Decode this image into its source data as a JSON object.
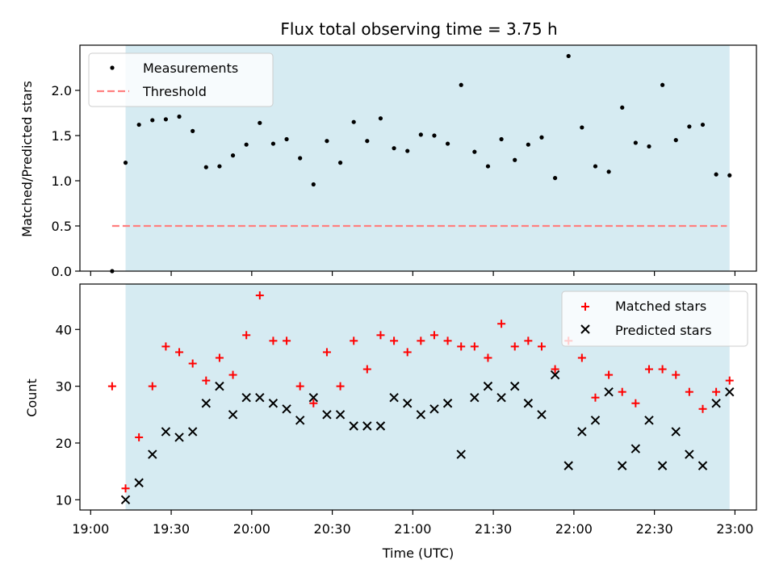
{
  "title": "Flux total observing time = 3.75 h",
  "xlabel": "Time (UTC)",
  "x_ticks": [
    "19:00",
    "19:30",
    "20:00",
    "20:30",
    "21:00",
    "21:30",
    "22:00",
    "22:30",
    "23:00"
  ],
  "colors": {
    "shade": "#add8e6",
    "measurement": "#000000",
    "threshold": "#ff7f7f",
    "matched": "#ff0000",
    "predicted": "#000000"
  },
  "chart_data": [
    {
      "type": "scatter",
      "ylabel": "Matched/Predicted stars",
      "xlim": [
        "18:56",
        "23:08"
      ],
      "ylim": [
        0,
        2.5
      ],
      "y_ticks": [
        "0.0",
        "0.5",
        "1.0",
        "1.5",
        "2.0"
      ],
      "shaded_region": [
        "19:13",
        "22:58"
      ],
      "threshold": {
        "value": 0.5,
        "x_range": [
          "19:08",
          "22:57"
        ]
      },
      "legend": {
        "position": "top-left",
        "entries": [
          "Measurements",
          "Threshold"
        ]
      },
      "series": [
        {
          "name": "Measurements",
          "x": [
            "19:08",
            "19:13",
            "19:18",
            "19:23",
            "19:28",
            "19:33",
            "19:38",
            "19:43",
            "19:48",
            "19:53",
            "19:58",
            "20:03",
            "20:08",
            "20:13",
            "20:18",
            "20:23",
            "20:28",
            "20:33",
            "20:38",
            "20:43",
            "20:48",
            "20:53",
            "20:58",
            "21:03",
            "21:08",
            "21:13",
            "21:18",
            "21:23",
            "21:28",
            "21:33",
            "21:38",
            "21:43",
            "21:48",
            "21:53",
            "21:58",
            "22:03",
            "22:08",
            "22:13",
            "22:18",
            "22:23",
            "22:28",
            "22:33",
            "22:38",
            "22:43",
            "22:48",
            "22:53",
            "22:58"
          ],
          "values": [
            0.0,
            1.2,
            1.62,
            1.67,
            1.68,
            1.71,
            1.55,
            1.15,
            1.16,
            1.28,
            1.4,
            1.64,
            1.41,
            1.46,
            1.25,
            0.96,
            1.44,
            1.2,
            1.65,
            1.44,
            1.69,
            1.36,
            1.33,
            1.51,
            1.5,
            1.41,
            2.06,
            1.32,
            1.16,
            1.46,
            1.23,
            1.4,
            1.48,
            1.03,
            2.38,
            1.59,
            1.16,
            1.1,
            1.81,
            1.42,
            1.38,
            2.06,
            1.45,
            1.6,
            1.62,
            1.07,
            1.06
          ]
        }
      ]
    },
    {
      "type": "scatter",
      "ylabel": "Count",
      "xlim": [
        "18:56",
        "23:08"
      ],
      "ylim": [
        8.2,
        48
      ],
      "y_ticks": [
        "10",
        "20",
        "30",
        "40"
      ],
      "shaded_region": [
        "19:13",
        "22:58"
      ],
      "legend": {
        "position": "top-right",
        "entries": [
          "Matched stars",
          "Predicted stars"
        ]
      },
      "series": [
        {
          "name": "Matched stars",
          "marker": "+",
          "x": [
            "19:08",
            "19:13",
            "19:18",
            "19:23",
            "19:28",
            "19:33",
            "19:38",
            "19:43",
            "19:48",
            "19:53",
            "19:58",
            "20:03",
            "20:08",
            "20:13",
            "20:18",
            "20:23",
            "20:28",
            "20:33",
            "20:38",
            "20:43",
            "20:48",
            "20:53",
            "20:58",
            "21:03",
            "21:08",
            "21:13",
            "21:18",
            "21:23",
            "21:28",
            "21:33",
            "21:38",
            "21:43",
            "21:48",
            "21:53",
            "21:58",
            "22:03",
            "22:08",
            "22:13",
            "22:18",
            "22:23",
            "22:28",
            "22:33",
            "22:38",
            "22:43",
            "22:48",
            "22:53",
            "22:58"
          ],
          "values": [
            30,
            12,
            21,
            30,
            37,
            36,
            34,
            31,
            35,
            32,
            39,
            46,
            38,
            38,
            30,
            27,
            36,
            30,
            38,
            33,
            39,
            38,
            36,
            38,
            39,
            38,
            37,
            37,
            35,
            41,
            37,
            38,
            37,
            33,
            38,
            35,
            28,
            32,
            29,
            27,
            33,
            33,
            32,
            29,
            26,
            29,
            31
          ]
        },
        {
          "name": "Predicted stars",
          "marker": "x",
          "x": [
            "19:13",
            "19:18",
            "19:23",
            "19:28",
            "19:33",
            "19:38",
            "19:43",
            "19:48",
            "19:53",
            "19:58",
            "20:03",
            "20:08",
            "20:13",
            "20:18",
            "20:23",
            "20:28",
            "20:33",
            "20:38",
            "20:43",
            "20:48",
            "20:53",
            "20:58",
            "21:03",
            "21:08",
            "21:13",
            "21:18",
            "21:23",
            "21:28",
            "21:33",
            "21:38",
            "21:43",
            "21:48",
            "21:53",
            "21:58",
            "22:03",
            "22:08",
            "22:13",
            "22:18",
            "22:23",
            "22:28",
            "22:33",
            "22:38",
            "22:43",
            "22:48",
            "22:53",
            "22:58"
          ],
          "values": [
            10,
            13,
            18,
            22,
            21,
            22,
            27,
            30,
            25,
            28,
            28,
            27,
            26,
            24,
            28,
            25,
            25,
            23,
            23,
            23,
            28,
            27,
            25,
            26,
            27,
            18,
            28,
            30,
            28,
            30,
            27,
            25,
            32,
            16,
            22,
            24,
            29,
            16,
            19,
            24,
            16,
            22,
            18,
            16,
            27,
            29
          ]
        }
      ]
    }
  ]
}
